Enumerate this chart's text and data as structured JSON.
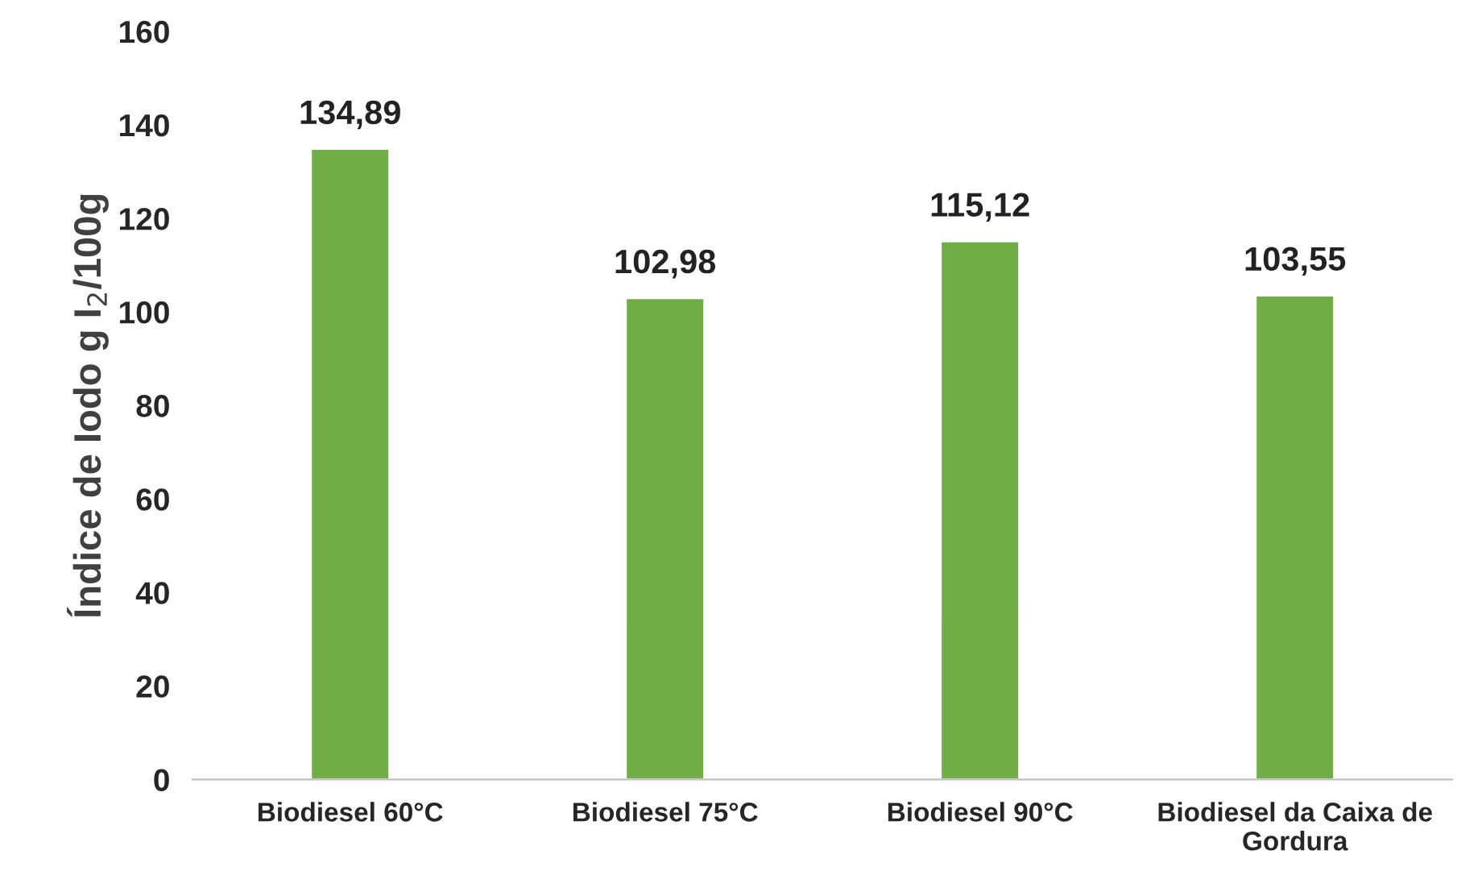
{
  "chart_data": {
    "type": "bar",
    "categories": [
      "Biodiesel 60°C",
      "Biodiesel 75°C",
      "Biodiesel 90°C",
      "Biodiesel da Caixa de Gordura"
    ],
    "values": [
      134.89,
      102.98,
      115.12,
      103.55
    ],
    "value_labels": [
      "134,89",
      "102,98",
      "115,12",
      "103,55"
    ],
    "color": "#70ad47",
    "ylabel": "Índice de Iodo g I$_{2}$/100g",
    "ylim": [
      0,
      160
    ],
    "yticks": [
      0,
      20,
      40,
      60,
      80,
      100,
      120,
      140,
      160
    ],
    "grid": false,
    "legend": false
  }
}
